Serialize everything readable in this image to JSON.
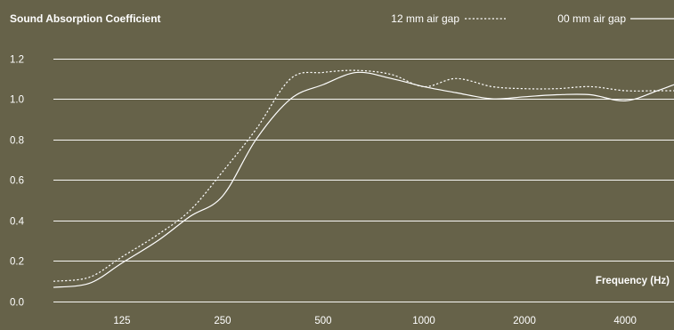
{
  "chart_data": {
    "type": "line",
    "title": "Sound Absorption Coefficient",
    "xlabel": "Frequency (Hz)",
    "ylabel": "",
    "x_scale": "log",
    "xlim": [
      78,
      5600
    ],
    "ylim": [
      0,
      1.2
    ],
    "y_ticks": [
      0.0,
      0.2,
      0.4,
      0.6,
      0.8,
      1.0,
      1.2
    ],
    "y_tick_labels": [
      "0.0",
      "0.2",
      "0.4",
      "0.6",
      "0.8",
      "1.0",
      "1.2"
    ],
    "x_ticks": [
      125,
      250,
      500,
      1000,
      2000,
      4000
    ],
    "x_tick_labels": [
      "125",
      "250",
      "500",
      "1000",
      "2000",
      "4000"
    ],
    "grid": "horizontal",
    "legend_position": "top-right",
    "colors": {
      "background": "#666249",
      "lines": "#ffffff"
    },
    "series": [
      {
        "name": "12 mm air gap",
        "style": "dashed",
        "x": [
          78,
          100,
          125,
          160,
          200,
          250,
          315,
          400,
          500,
          630,
          800,
          1000,
          1250,
          1600,
          2000,
          2500,
          3150,
          4000,
          5000,
          5600
        ],
        "y": [
          0.1,
          0.12,
          0.22,
          0.33,
          0.45,
          0.64,
          0.85,
          1.1,
          1.13,
          1.14,
          1.12,
          1.06,
          1.1,
          1.06,
          1.05,
          1.05,
          1.06,
          1.04,
          1.04,
          1.04
        ]
      },
      {
        "name": "00 mm air gap",
        "style": "solid",
        "x": [
          78,
          100,
          125,
          160,
          200,
          250,
          315,
          400,
          500,
          630,
          800,
          1000,
          1250,
          1600,
          2000,
          2500,
          3150,
          4000,
          5000,
          5600
        ],
        "y": [
          0.07,
          0.09,
          0.19,
          0.3,
          0.42,
          0.52,
          0.8,
          1.0,
          1.07,
          1.13,
          1.1,
          1.06,
          1.03,
          1.0,
          1.01,
          1.02,
          1.02,
          0.99,
          1.04,
          1.07
        ]
      }
    ]
  }
}
